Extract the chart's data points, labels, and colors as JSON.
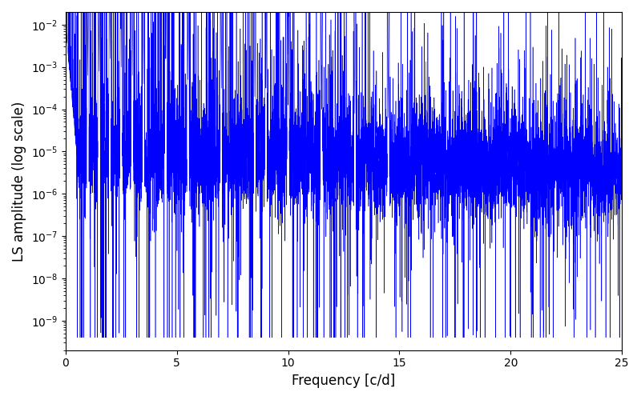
{
  "xlabel": "Frequency [c/d]",
  "ylabel": "LS amplitude (log scale)",
  "line_color": "#0000ff",
  "xlim": [
    0,
    25
  ],
  "ylim_log_min": -9.7,
  "ylim_log_max": -1.7,
  "freq_max": 25.0,
  "n_points": 8000,
  "seed": 12345,
  "background_color": "#ffffff",
  "figsize": [
    8.0,
    5.0
  ],
  "dpi": 100
}
